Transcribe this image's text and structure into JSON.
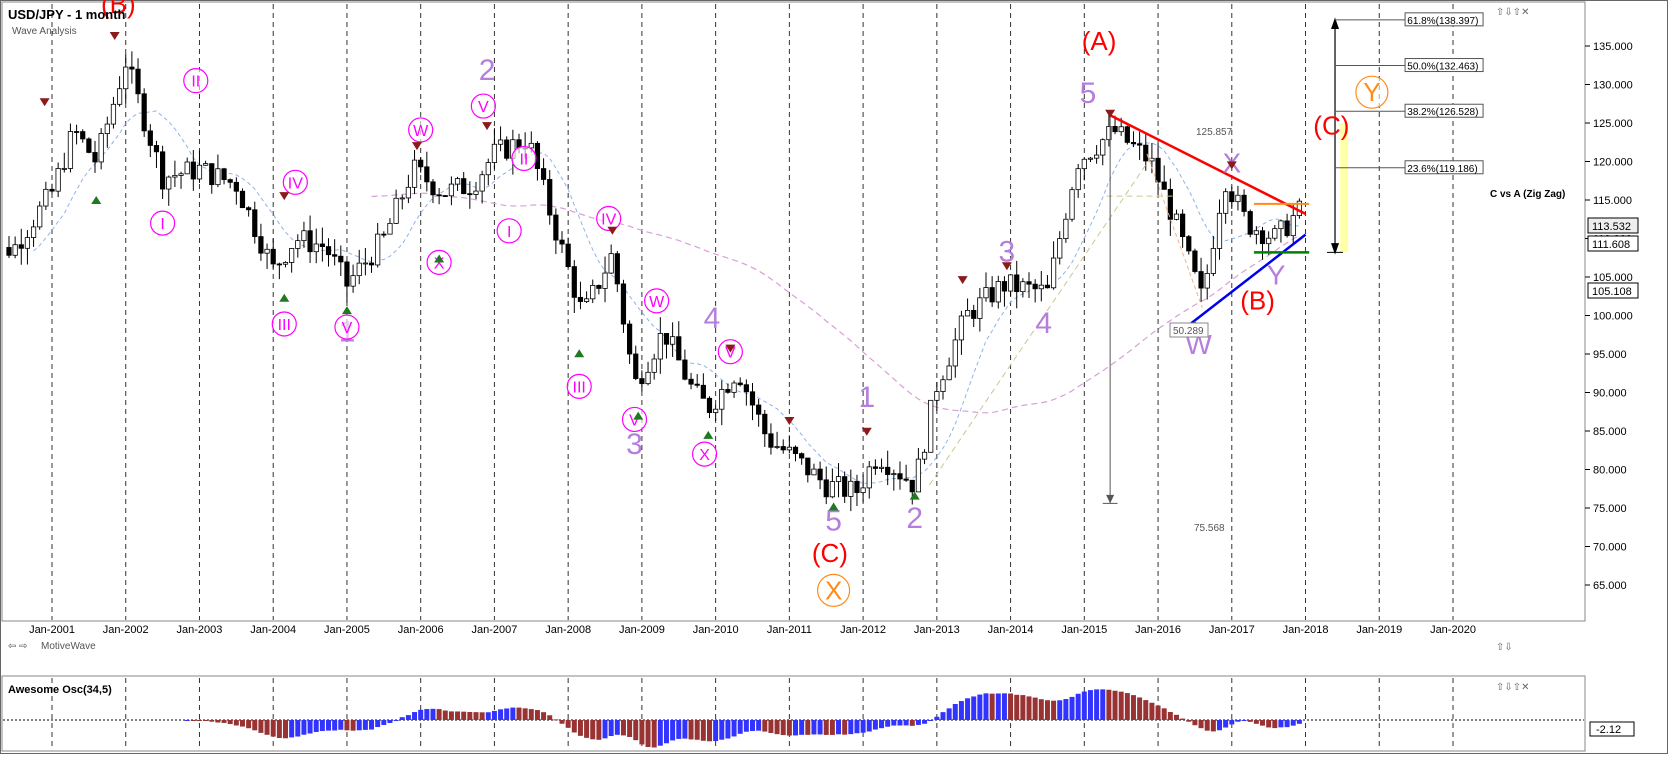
{
  "header": {
    "title": "USD/JPY - 1 month",
    "subtitle": "Wave Analysis"
  },
  "footer": {
    "brand": "MotiveWave"
  },
  "oscillator": {
    "label": "Awesome Osc(34,5)",
    "value": "-2.12",
    "up_color": "#3333ff",
    "down_color": "#993333"
  },
  "price_box": {
    "current": "113.532",
    "level_1": "111.608",
    "level_2": "105.108"
  },
  "colors": {
    "grid": "#333333",
    "red": "#ff0000",
    "magenta": "#ff00ff",
    "lavender": "#b57edc",
    "orange": "#ff8c1a",
    "blue": "#0000ee",
    "green": "#008000",
    "yellow": "#ffff99"
  },
  "fib": {
    "levels": [
      {
        "label": "61.8%(138.397)",
        "price": 138.397
      },
      {
        "label": "50.0%(132.463)",
        "price": 132.463
      },
      {
        "label": "38.2%(126.528)",
        "price": 126.528
      },
      {
        "label": "23.6%(119.186)",
        "price": 119.186
      }
    ],
    "caption": "C vs A (Zig Zag)"
  },
  "measure": {
    "high": "125.857",
    "low": "75.568",
    "range": "50.289"
  },
  "chart_data": {
    "type": "candlestick",
    "title": "USD/JPY - 1 month",
    "ylim": [
      60,
      142
    ],
    "y_ticks": [
      "65.000",
      "70.000",
      "75.000",
      "80.000",
      "85.000",
      "90.000",
      "95.000",
      "100.000",
      "105.000",
      "110.000",
      "115.000",
      "120.000",
      "125.000",
      "130.000",
      "135.000"
    ],
    "x_ticks": [
      "Jan-2001",
      "Jan-2002",
      "Jan-2003",
      "Jan-2004",
      "Jan-2005",
      "Jan-2006",
      "Jan-2007",
      "Jan-2008",
      "Jan-2009",
      "Jan-2010",
      "Jan-2011",
      "Jan-2012",
      "Jan-2013",
      "Jan-2014",
      "Jan-2015",
      "Jan-2016",
      "Jan-2017",
      "Jan-2018",
      "Jan-2019",
      "Jan-2020"
    ],
    "grid": "vertical dashed",
    "approx_closes": [
      {
        "t": 2000.0,
        "close": 107
      },
      {
        "t": 2000.5,
        "close": 109
      },
      {
        "t": 2001.0,
        "close": 116
      },
      {
        "t": 2001.3,
        "close": 124
      },
      {
        "t": 2001.6,
        "close": 120
      },
      {
        "t": 2002.0,
        "close": 133
      },
      {
        "t": 2002.5,
        "close": 118
      },
      {
        "t": 2003.0,
        "close": 119
      },
      {
        "t": 2003.5,
        "close": 117
      },
      {
        "t": 2004.0,
        "close": 106
      },
      {
        "t": 2004.3,
        "close": 110
      },
      {
        "t": 2004.7,
        "close": 109
      },
      {
        "t": 2005.0,
        "close": 104
      },
      {
        "t": 2005.5,
        "close": 110
      },
      {
        "t": 2005.9,
        "close": 119
      },
      {
        "t": 2006.3,
        "close": 116
      },
      {
        "t": 2006.7,
        "close": 117
      },
      {
        "t": 2007.0,
        "close": 121
      },
      {
        "t": 2007.45,
        "close": 123
      },
      {
        "t": 2007.8,
        "close": 112
      },
      {
        "t": 2008.2,
        "close": 100
      },
      {
        "t": 2008.6,
        "close": 108
      },
      {
        "t": 2008.9,
        "close": 91
      },
      {
        "t": 2009.3,
        "close": 98
      },
      {
        "t": 2009.7,
        "close": 90
      },
      {
        "t": 2009.9,
        "close": 88
      },
      {
        "t": 2010.3,
        "close": 93
      },
      {
        "t": 2010.7,
        "close": 84
      },
      {
        "t": 2011.0,
        "close": 82
      },
      {
        "t": 2011.5,
        "close": 78
      },
      {
        "t": 2011.9,
        "close": 77
      },
      {
        "t": 2012.2,
        "close": 82
      },
      {
        "t": 2012.7,
        "close": 78
      },
      {
        "t": 2013.0,
        "close": 91
      },
      {
        "t": 2013.4,
        "close": 100
      },
      {
        "t": 2013.9,
        "close": 104
      },
      {
        "t": 2014.5,
        "close": 103
      },
      {
        "t": 2014.9,
        "close": 120
      },
      {
        "t": 2015.4,
        "close": 124
      },
      {
        "t": 2015.9,
        "close": 120
      },
      {
        "t": 2016.2,
        "close": 113
      },
      {
        "t": 2016.6,
        "close": 102
      },
      {
        "t": 2016.9,
        "close": 118
      },
      {
        "t": 2017.2,
        "close": 112
      },
      {
        "t": 2017.6,
        "close": 110
      },
      {
        "t": 2017.9,
        "close": 113.5
      }
    ]
  },
  "waves": [
    {
      "label": "(B)",
      "t": 2001.9,
      "price": 139.3,
      "color": "red",
      "size": 26
    },
    {
      "label": "(A)",
      "t": 2015.2,
      "price": 134.5,
      "color": "red",
      "size": 26
    },
    {
      "label": "(C)",
      "t": 2018.35,
      "price": 123.5,
      "color": "red",
      "size": 26
    },
    {
      "label": "(B)",
      "t": 2017.35,
      "price": 100.8,
      "color": "red",
      "size": 26
    },
    {
      "label": "(C)",
      "t": 2011.55,
      "price": 68.0,
      "color": "red",
      "size": 26
    },
    {
      "label": "5",
      "t": 2015.05,
      "price": 127.6,
      "color": "lavender",
      "size": 30
    },
    {
      "label": "2",
      "t": 2006.9,
      "price": 130.6,
      "color": "lavender",
      "size": 30
    },
    {
      "label": "1",
      "t": 2005.0,
      "price": 96.6,
      "color": "lavender",
      "size": 30
    },
    {
      "label": "3",
      "t": 2008.9,
      "price": 82.0,
      "color": "lavender",
      "size": 30
    },
    {
      "label": "4",
      "t": 2009.95,
      "price": 98.4,
      "color": "lavender",
      "size": 30
    },
    {
      "label": "5",
      "t": 2011.6,
      "price": 72.1,
      "color": "lavender",
      "size": 30
    },
    {
      "label": "1",
      "t": 2012.05,
      "price": 88.1,
      "color": "lavender",
      "size": 30
    },
    {
      "label": "2",
      "t": 2012.7,
      "price": 72.4,
      "color": "lavender",
      "size": 30
    },
    {
      "label": "3",
      "t": 2013.95,
      "price": 107.0,
      "color": "lavender",
      "size": 30
    },
    {
      "label": "4",
      "t": 2014.45,
      "price": 97.7,
      "color": "lavender",
      "size": 30
    },
    {
      "label": "W",
      "t": 2016.55,
      "price": 95.0,
      "color": "lavender",
      "size": 28
    },
    {
      "label": "X",
      "t": 2017.0,
      "price": 118.6,
      "color": "lavender",
      "size": 28
    },
    {
      "label": "Y",
      "t": 2017.6,
      "price": 104.0,
      "color": "lavender",
      "size": 28
    }
  ],
  "circled": [
    {
      "label": "II",
      "t": 2002.95,
      "price": 130.5,
      "color": "magenta"
    },
    {
      "label": "I",
      "t": 2002.5,
      "price": 112.0,
      "color": "magenta"
    },
    {
      "label": "IV",
      "t": 2004.3,
      "price": 117.3,
      "color": "magenta"
    },
    {
      "label": "III",
      "t": 2004.15,
      "price": 98.9,
      "color": "magenta"
    },
    {
      "label": "V",
      "t": 2005.0,
      "price": 98.5,
      "color": "magenta"
    },
    {
      "label": "W",
      "t": 2006.0,
      "price": 124.1,
      "color": "magenta"
    },
    {
      "label": "X",
      "t": 2006.25,
      "price": 106.9,
      "color": "magenta"
    },
    {
      "label": "V",
      "t": 2006.85,
      "price": 127.2,
      "color": "magenta"
    },
    {
      "label": "II",
      "t": 2007.4,
      "price": 120.4,
      "color": "magenta"
    },
    {
      "label": "I",
      "t": 2007.2,
      "price": 111.0,
      "color": "magenta"
    },
    {
      "label": "IV",
      "t": 2008.55,
      "price": 112.6,
      "color": "magenta"
    },
    {
      "label": "III",
      "t": 2008.15,
      "price": 90.8,
      "color": "magenta"
    },
    {
      "label": "W",
      "t": 2009.2,
      "price": 101.9,
      "color": "magenta"
    },
    {
      "label": "V",
      "t": 2008.9,
      "price": 86.5,
      "color": "magenta"
    },
    {
      "label": "X",
      "t": 2009.85,
      "price": 82.0,
      "color": "magenta"
    },
    {
      "label": "V",
      "t": 2010.2,
      "price": 95.3,
      "color": "magenta"
    },
    {
      "label": "X",
      "t": 2011.6,
      "price": 64.3,
      "color": "orange"
    },
    {
      "label": "Y",
      "t": 2018.9,
      "price": 129.0,
      "color": "orange"
    }
  ]
}
